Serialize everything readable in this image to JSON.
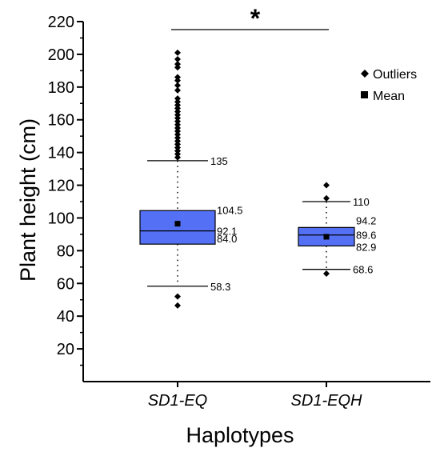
{
  "chart_data": {
    "type": "box",
    "ylabel": "Plant height (cm)",
    "xlabel": "Haplotypes",
    "ylim": [
      0,
      220
    ],
    "y_ticks": [
      20,
      40,
      60,
      80,
      100,
      120,
      140,
      160,
      180,
      200,
      220
    ],
    "box_color": "#5470f5",
    "legend": {
      "position": "top-right",
      "items": [
        {
          "label": "Outliers",
          "marker": "diamond"
        },
        {
          "label": "Mean",
          "marker": "square"
        }
      ]
    },
    "significance": {
      "label": "*",
      "between": [
        0,
        1
      ]
    },
    "groups": [
      {
        "name": "SD1-EQ",
        "whisker_low": 58.3,
        "q1": 84.0,
        "median": 92.1,
        "q3": 104.5,
        "whisker_high": 135,
        "mean": 96.5,
        "labels": {
          "whisker_high": "135",
          "q3": "104.5",
          "median": "92.1",
          "q1": "84.0",
          "whisker_low": "58.3"
        },
        "outliers": [
          201,
          197,
          194,
          192,
          186,
          184,
          181,
          178,
          173,
          171,
          169,
          167,
          165,
          163,
          161,
          159,
          157,
          155,
          153,
          151,
          149,
          147,
          145,
          143,
          141,
          139,
          137,
          52,
          46.5
        ]
      },
      {
        "name": "SD1-EQH",
        "whisker_low": 68.6,
        "q1": 82.9,
        "median": 89.6,
        "q3": 94.2,
        "whisker_high": 110,
        "mean": 88.5,
        "labels": {
          "whisker_high": "110",
          "q3": "94.2",
          "median": "89.6",
          "q1": "82.9",
          "whisker_low": "68.6"
        },
        "outliers": [
          120,
          112,
          66
        ]
      }
    ]
  }
}
